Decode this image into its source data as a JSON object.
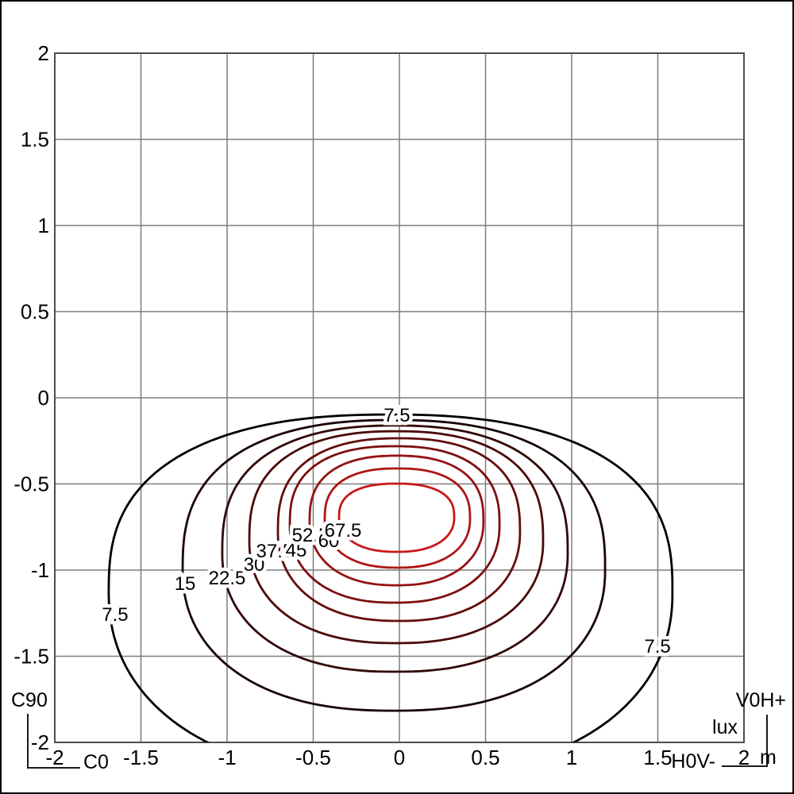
{
  "chart_data": {
    "type": "contour",
    "title": "",
    "value_unit": "lux",
    "axis_unit": "m",
    "grid": true,
    "x_axis": {
      "range": [
        -2,
        2
      ],
      "tick_step": 0.5,
      "tick_labels": [
        "-2",
        "-1.5",
        "-1",
        "-0.5",
        "0",
        "0.5",
        "1",
        "1.5",
        "2"
      ]
    },
    "y_axis": {
      "range": [
        -2,
        2
      ],
      "tick_step": 0.5,
      "tick_labels": [
        "2",
        "1.5",
        "1",
        "0.5",
        "0",
        "-0.5",
        "-1",
        "-1.5",
        "-2"
      ]
    },
    "plane_labels": {
      "vertical_plane": "C90",
      "horizontal_plane": "C0",
      "right_vertical_plane": "V0H+",
      "right_horizontal_plane": "H0V-"
    },
    "contours": [
      {
        "level": 7.5,
        "label": "7.5",
        "color": "#000000",
        "extent": {
          "left": -1.687,
          "right": 1.585,
          "top": -0.097,
          "bottom": -2.2,
          "widest_y": -1.13
        },
        "label_points": [
          {
            "x": -0.014,
            "y": -0.101
          },
          {
            "x": -1.65,
            "y": -1.258
          },
          {
            "x": 1.498,
            "y": -1.442
          }
        ]
      },
      {
        "level": 15,
        "label": "15",
        "color": "#190303",
        "extent": {
          "left": -1.258,
          "right": 1.194,
          "top": -0.129,
          "bottom": -1.816,
          "widest_y": -1.0
        },
        "label_points": [
          {
            "x": -1.244,
            "y": -1.078
          }
        ]
      },
      {
        "level": 22.5,
        "label": "22.5",
        "color": "#320606",
        "extent": {
          "left": -1.028,
          "right": 0.977,
          "top": -0.161,
          "bottom": -1.59,
          "widest_y": -0.903
        },
        "label_points": [
          {
            "x": -1.0,
            "y": -1.046
          }
        ]
      },
      {
        "level": 30,
        "label": "30",
        "color": "#4b0909",
        "extent": {
          "left": -0.871,
          "right": 0.834,
          "top": -0.194,
          "bottom": -1.424,
          "widest_y": -0.834
        },
        "label_points": [
          {
            "x": -0.843,
            "y": -0.968
          }
        ]
      },
      {
        "level": 37.5,
        "label": "37.5",
        "color": "#640c0c",
        "extent": {
          "left": -0.705,
          "right": 0.7,
          "top": -0.235,
          "bottom": -1.295,
          "widest_y": -0.779
        },
        "label_points": [
          {
            "x": -0.724,
            "y": -0.889
          }
        ]
      },
      {
        "level": 45,
        "label": "45",
        "color": "#7d0f0f",
        "extent": {
          "left": -0.636,
          "right": 0.581,
          "top": -0.281,
          "bottom": -1.189,
          "widest_y": -0.742
        },
        "label_points": [
          {
            "x": -0.599,
            "y": -0.885
          }
        ]
      },
      {
        "level": 52.5,
        "label": "52.5",
        "color": "#961212",
        "extent": {
          "left": -0.521,
          "right": 0.488,
          "top": -0.336,
          "bottom": -1.088,
          "widest_y": -0.719
        },
        "label_points": [
          {
            "x": -0.516,
            "y": -0.797
          }
        ]
      },
      {
        "level": 60,
        "label": "60",
        "color": "#af1515",
        "extent": {
          "left": -0.433,
          "right": 0.41,
          "top": -0.41,
          "bottom": -0.986,
          "widest_y": -0.705
        },
        "label_points": [
          {
            "x": -0.41,
            "y": -0.829
          }
        ]
      },
      {
        "level": 67.5,
        "label": "67.5",
        "color": "#c81818",
        "extent": {
          "left": -0.35,
          "right": 0.318,
          "top": -0.498,
          "bottom": -0.894,
          "widest_y": -0.696
        },
        "label_points": [
          {
            "x": -0.327,
            "y": -0.77
          }
        ]
      }
    ]
  },
  "annotations": {
    "c90": "C90",
    "c0": "C0",
    "v0h_plus": "V0H+",
    "h0v_minus": "H0V-",
    "lux": "lux",
    "meters": "m"
  },
  "style": {
    "background": "#ffffff",
    "frame_color": "#000000",
    "grid_color": "#7d7d7d",
    "plot_border_color": "#4d4d4d",
    "text_color": "#000000"
  }
}
